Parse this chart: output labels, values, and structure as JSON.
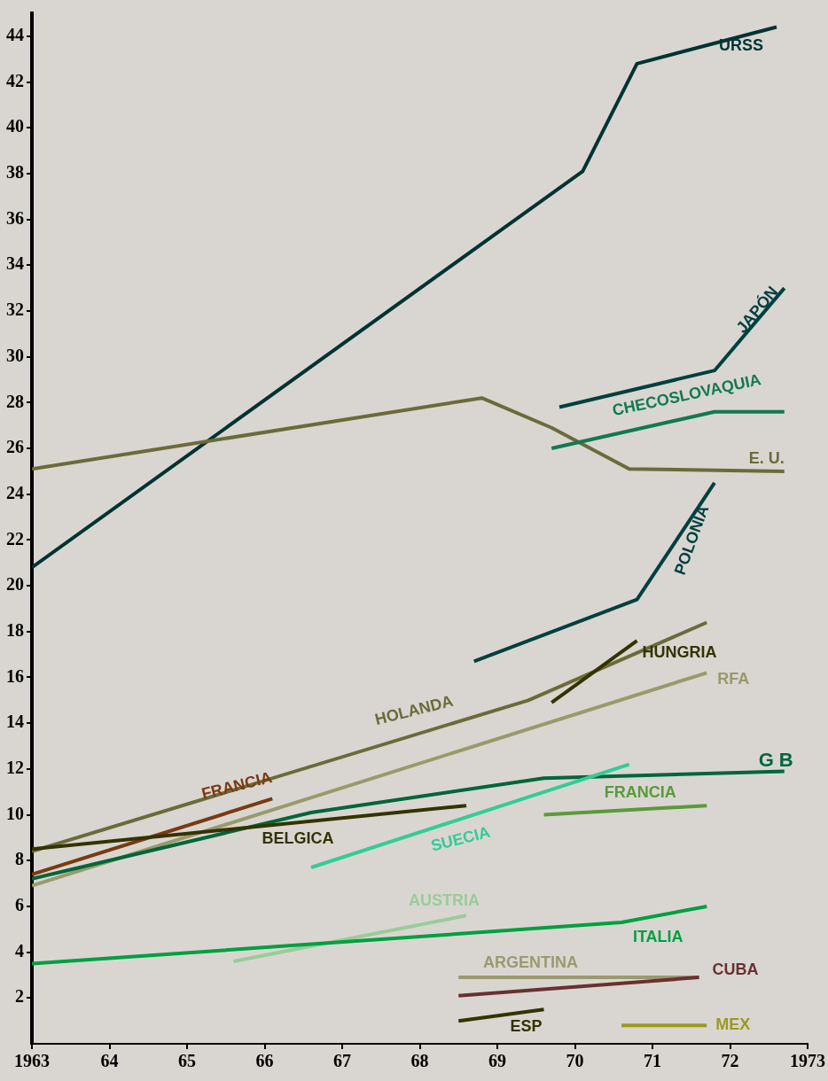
{
  "chart_data": {
    "type": "line",
    "legend": false,
    "grid": false,
    "marker": "none",
    "xlim": [
      1963,
      1973
    ],
    "xticks": [
      {
        "value": 1963,
        "label": "1963"
      },
      {
        "value": 1964,
        "label": "64"
      },
      {
        "value": 1965,
        "label": "65"
      },
      {
        "value": 1966,
        "label": "66"
      },
      {
        "value": 1967,
        "label": "67"
      },
      {
        "value": 1968,
        "label": "68"
      },
      {
        "value": 1969,
        "label": "69"
      },
      {
        "value": 1970,
        "label": "70"
      },
      {
        "value": 1971,
        "label": "71"
      },
      {
        "value": 1972,
        "label": "72"
      },
      {
        "value": 1973,
        "label": "1973"
      }
    ],
    "ylim": [
      0,
      45
    ],
    "yticks": [
      2,
      4,
      6,
      8,
      10,
      12,
      14,
      16,
      18,
      20,
      22,
      24,
      26,
      28,
      30,
      32,
      34,
      36,
      38,
      40,
      42,
      44
    ],
    "series": [
      {
        "name": "URSS",
        "color": "#003333",
        "x": [
          1963,
          1970.1,
          1970.8,
          1972.6
        ],
        "values": [
          20.8,
          38.1,
          42.8,
          44.4
        ]
      },
      {
        "name": "E. U.",
        "color": "#6b6b3a",
        "x": [
          1963,
          1968.8,
          1969.7,
          1970.7,
          1972.7
        ],
        "values": [
          25.1,
          28.2,
          26.9,
          25.1,
          25.0
        ]
      },
      {
        "name": "JAPÓN",
        "color": "#004040",
        "x": [
          1969.8,
          1971.8,
          1972.7
        ],
        "values": [
          27.8,
          29.4,
          33.0
        ]
      },
      {
        "name": "CHECOSLOVAQUIA",
        "color": "#117a50",
        "x": [
          1969.7,
          1971.8,
          1972.7
        ],
        "values": [
          26.0,
          27.6,
          27.6
        ]
      },
      {
        "name": "POLONIA",
        "color": "#004040",
        "x": [
          1968.7,
          1970.8,
          1971.8
        ],
        "values": [
          16.7,
          19.4,
          24.5
        ]
      },
      {
        "name": "HOLANDA",
        "color": "#6b6b3a",
        "x": [
          1963,
          1969.4,
          1971.7
        ],
        "values": [
          8.4,
          15.0,
          18.4
        ]
      },
      {
        "name": "RFA",
        "color": "#9a9a6a",
        "x": [
          1963,
          1971.7
        ],
        "values": [
          6.9,
          16.2
        ]
      },
      {
        "name": "HUNGRIA",
        "color": "#333300",
        "x": [
          1969.7,
          1970.8
        ],
        "values": [
          14.9,
          17.6
        ]
      },
      {
        "name": "G B",
        "color": "#00663a",
        "x": [
          1963,
          1966.6,
          1969.6,
          1972.7
        ],
        "values": [
          7.2,
          10.1,
          11.6,
          11.9
        ]
      },
      {
        "name": "FRANCIA",
        "color": "#7a3a10",
        "x": [
          1963,
          1966.1
        ],
        "values": [
          7.4,
          10.7
        ]
      },
      {
        "name": "BELGICA",
        "color": "#333300",
        "x": [
          1963,
          1968.6
        ],
        "values": [
          8.5,
          10.4
        ]
      },
      {
        "name": "SUECIA",
        "color": "#33cc99",
        "x": [
          1966.6,
          1970.7
        ],
        "values": [
          7.7,
          12.2
        ]
      },
      {
        "name": "FRANCIA",
        "color": "#5a9a3a",
        "x": [
          1969.6,
          1971.7
        ],
        "values": [
          10.0,
          10.4
        ]
      },
      {
        "name": "AUSTRIA",
        "color": "#99cc99",
        "x": [
          1965.6,
          1968.6
        ],
        "values": [
          3.6,
          5.6
        ]
      },
      {
        "name": "ITALIA",
        "color": "#00a040",
        "x": [
          1963,
          1970.6,
          1971.7
        ],
        "values": [
          3.5,
          5.3,
          6.0
        ]
      },
      {
        "name": "ARGENTINA",
        "color": "#9a9a70",
        "x": [
          1968.5,
          1971.6
        ],
        "values": [
          2.9,
          2.9
        ]
      },
      {
        "name": "CUBA",
        "color": "#6a3030",
        "x": [
          1968.5,
          1971.6
        ],
        "values": [
          2.1,
          2.9
        ]
      },
      {
        "name": "ESP",
        "color": "#333300",
        "x": [
          1968.5,
          1969.6
        ],
        "values": [
          1.0,
          1.5
        ]
      },
      {
        "name": "MEX",
        "color": "#9a9a20",
        "x": [
          1970.6,
          1971.7
        ],
        "values": [
          0.8,
          0.8
        ]
      }
    ]
  }
}
